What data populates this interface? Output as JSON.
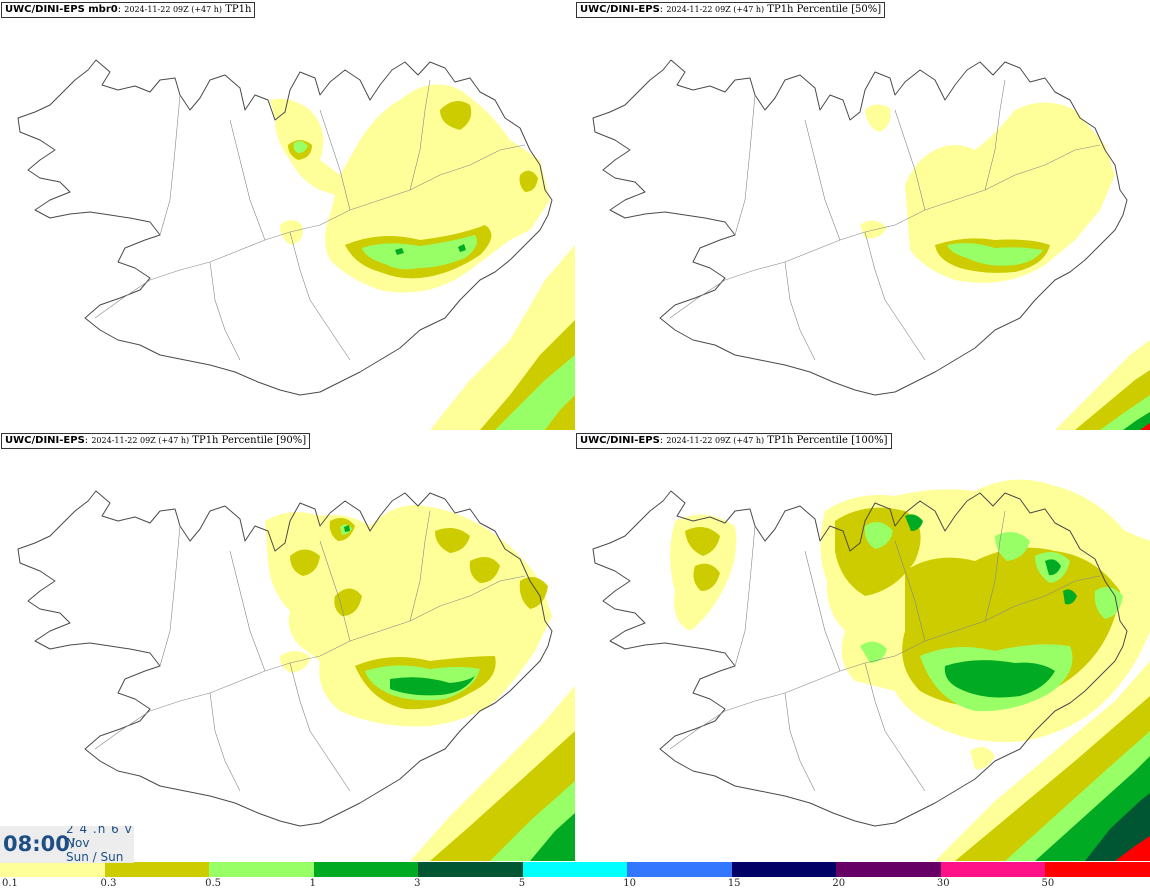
{
  "panels": [
    {
      "model": "UWC/DINI-EPS mbr0",
      "run": "2024-11-22 09Z (+47 h)",
      "param": "TP1h"
    },
    {
      "model": "UWC/DINI-EPS",
      "run": "2024-11-22 09Z (+47 h)",
      "param": "TP1h Percentile [50%]"
    },
    {
      "model": "UWC/DINI-EPS",
      "run": "2024-11-22 09Z (+47 h)",
      "param": "TP1h Percentile [90%]"
    },
    {
      "model": "UWC/DINI-EPS",
      "run": "2024-11-22 09Z (+47 h)",
      "param": "TP1h Percentile [100%]"
    }
  ],
  "time_box": {
    "time": "08:00",
    "date_line1": "2 4 .n 6 v ./",
    "date_line2": "Nov",
    "date_line3": "Sun / Sun"
  },
  "colorbar": {
    "ticks": [
      "0.1",
      "0.3",
      "0.5",
      "1",
      "3",
      "5",
      "10",
      "15",
      "20",
      "30",
      "50"
    ],
    "colors": [
      "#ffff99",
      "#cccc00",
      "#99ff66",
      "#00aa22",
      "#005533",
      "#00ffff",
      "#3377ff",
      "#000066",
      "#660066",
      "#ff1188",
      "#ff0000"
    ]
  },
  "legend_colors": {
    "c01": "#ffff99",
    "c03": "#cccc00",
    "c05": "#99ff66",
    "c1": "#00aa22",
    "c3": "#005533",
    "coast": "#555555"
  }
}
